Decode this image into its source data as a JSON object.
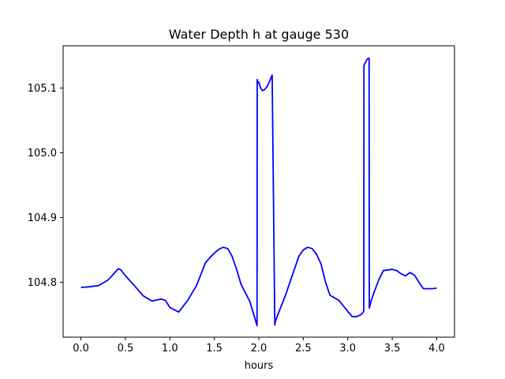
{
  "chart_data": {
    "type": "line",
    "title": "Water Depth h at gauge 530",
    "xlabel": "hours",
    "ylabel": "",
    "xlim": [
      -0.2,
      4.2
    ],
    "ylim": [
      104.7152,
      105.1652
    ],
    "xticks": [
      0.0,
      0.5,
      1.0,
      1.5,
      2.0,
      2.5,
      3.0,
      3.5,
      4.0
    ],
    "xtick_labels": [
      "0.0",
      "0.5",
      "1.0",
      "1.5",
      "2.0",
      "2.5",
      "3.0",
      "3.5",
      "4.0"
    ],
    "yticks": [
      104.8,
      104.9,
      105.0,
      105.1
    ],
    "ytick_labels": [
      "104.8",
      "104.9",
      "105.0",
      "105.1"
    ],
    "grid": false,
    "colors": {
      "series": "#0000ff",
      "axes": "#000000",
      "background": "#ffffff"
    },
    "series": [
      {
        "color": "#0000ff",
        "x": [
          0.0,
          0.1,
          0.2,
          0.3,
          0.35,
          0.42,
          0.45,
          0.5,
          0.6,
          0.7,
          0.8,
          0.9,
          0.95,
          1.0,
          1.1,
          1.2,
          1.3,
          1.4,
          1.45,
          1.5,
          1.55,
          1.6,
          1.65,
          1.7,
          1.75,
          1.8,
          1.9,
          1.98,
          1.982,
          1.99,
          2.0,
          2.02,
          2.04,
          2.06,
          2.08,
          2.1,
          2.12,
          2.15,
          2.18,
          2.182,
          2.2,
          2.3,
          2.4,
          2.45,
          2.5,
          2.55,
          2.6,
          2.65,
          2.7,
          2.75,
          2.8,
          2.9,
          3.0,
          3.05,
          3.1,
          3.15,
          3.18,
          3.182,
          3.2,
          3.22,
          3.24,
          3.242,
          3.26,
          3.3,
          3.35,
          3.4,
          3.5,
          3.55,
          3.6,
          3.65,
          3.7,
          3.75,
          3.8,
          3.85,
          3.9,
          3.95,
          4.0
        ],
        "y": [
          104.792,
          104.793,
          104.795,
          104.803,
          104.81,
          104.821,
          104.819,
          104.81,
          104.795,
          104.779,
          104.771,
          104.774,
          104.772,
          104.761,
          104.754,
          104.772,
          104.795,
          104.83,
          104.838,
          104.845,
          104.851,
          104.854,
          104.852,
          104.84,
          104.82,
          104.797,
          104.77,
          104.733,
          105.113,
          105.108,
          105.109,
          105.1,
          105.096,
          105.097,
          105.1,
          105.104,
          105.11,
          105.12,
          104.734,
          104.737,
          104.745,
          104.78,
          104.82,
          104.84,
          104.85,
          104.854,
          104.852,
          104.843,
          104.828,
          104.8,
          104.78,
          104.772,
          104.755,
          104.747,
          104.747,
          104.75,
          104.755,
          105.135,
          105.14,
          105.145,
          105.146,
          104.76,
          104.77,
          104.786,
          104.804,
          104.818,
          104.82,
          104.818,
          104.813,
          104.81,
          104.815,
          104.811,
          104.8,
          104.79,
          104.79,
          104.79,
          104.791
        ]
      }
    ]
  }
}
